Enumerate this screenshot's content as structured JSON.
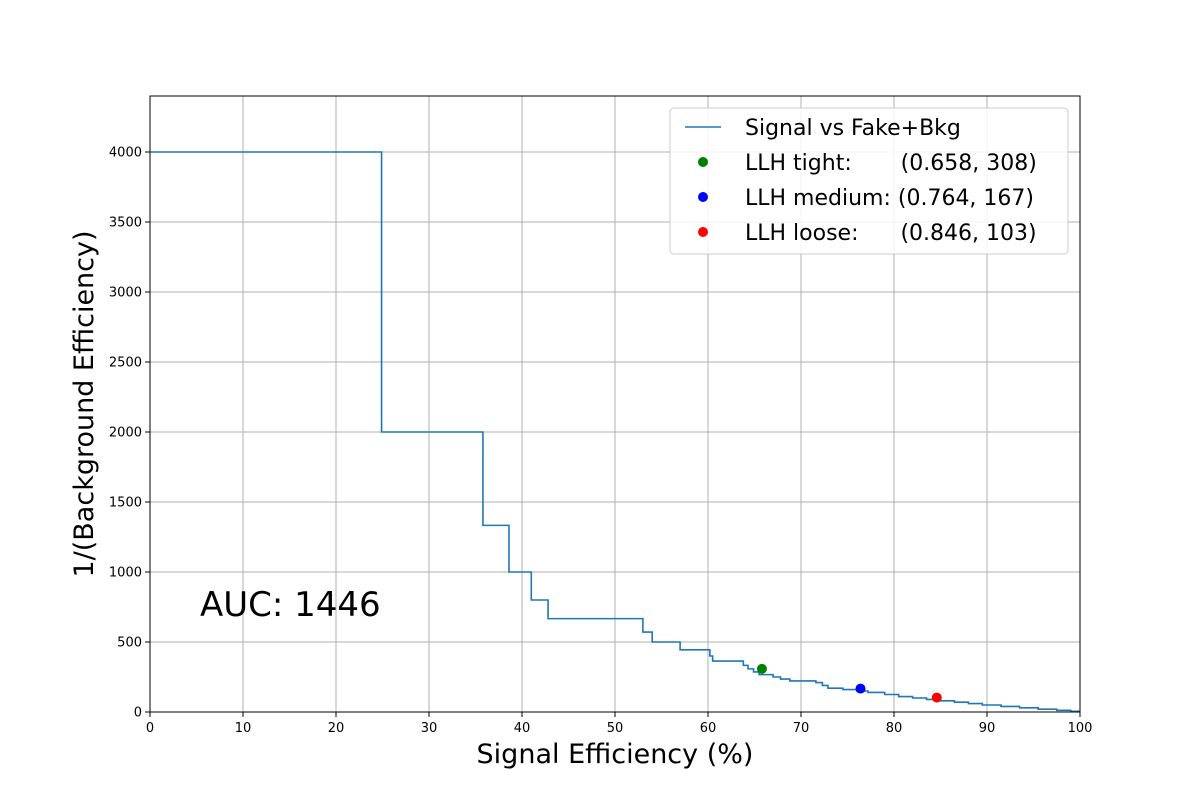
{
  "chart_data": {
    "type": "line",
    "title": "",
    "xlabel": "Signal Efficiency (%)",
    "ylabel": "1/(Background Efficiency)",
    "xlim": [
      0,
      100
    ],
    "ylim": [
      0,
      4400
    ],
    "xticks": [
      0,
      10,
      20,
      30,
      40,
      50,
      60,
      70,
      80,
      90,
      100
    ],
    "yticks": [
      0,
      500,
      1000,
      1500,
      2000,
      2500,
      3000,
      3500,
      4000
    ],
    "grid": true,
    "legend_position": "top-right",
    "series": [
      {
        "name": "Signal vs Fake+Bkg",
        "color": "#1f77b4",
        "style": "step",
        "points": [
          [
            0,
            4000
          ],
          [
            24.9,
            4000
          ],
          [
            24.9,
            2000
          ],
          [
            35.8,
            2000
          ],
          [
            35.8,
            1333
          ],
          [
            38.6,
            1333
          ],
          [
            38.6,
            1000
          ],
          [
            41.0,
            1000
          ],
          [
            41.0,
            800
          ],
          [
            42.8,
            800
          ],
          [
            42.8,
            667
          ],
          [
            53.0,
            667
          ],
          [
            53.0,
            571
          ],
          [
            54.0,
            571
          ],
          [
            54.0,
            500
          ],
          [
            57.0,
            500
          ],
          [
            57.0,
            444
          ],
          [
            60.2,
            444
          ],
          [
            60.2,
            400
          ],
          [
            60.5,
            400
          ],
          [
            60.5,
            364
          ],
          [
            63.8,
            364
          ],
          [
            63.8,
            333
          ],
          [
            64.3,
            333
          ],
          [
            64.3,
            308
          ],
          [
            64.9,
            308
          ],
          [
            64.9,
            286
          ],
          [
            65.5,
            286
          ],
          [
            65.5,
            267
          ],
          [
            67.0,
            267
          ],
          [
            67.0,
            250
          ],
          [
            67.8,
            250
          ],
          [
            67.8,
            235
          ],
          [
            68.8,
            235
          ],
          [
            68.8,
            222
          ],
          [
            71.6,
            222
          ],
          [
            71.6,
            210
          ],
          [
            72.3,
            210
          ],
          [
            72.3,
            190
          ],
          [
            72.9,
            190
          ],
          [
            72.9,
            170
          ],
          [
            74.5,
            170
          ],
          [
            74.5,
            160
          ],
          [
            76.0,
            160
          ],
          [
            76.0,
            150
          ],
          [
            77.2,
            150
          ],
          [
            77.2,
            140
          ],
          [
            79.0,
            140
          ],
          [
            79.0,
            125
          ],
          [
            80.5,
            125
          ],
          [
            80.5,
            110
          ],
          [
            82.0,
            110
          ],
          [
            82.0,
            100
          ],
          [
            83.5,
            100
          ],
          [
            83.5,
            90
          ],
          [
            85.0,
            90
          ],
          [
            85.0,
            80
          ],
          [
            86.5,
            80
          ],
          [
            86.5,
            70
          ],
          [
            88.0,
            70
          ],
          [
            88.0,
            60
          ],
          [
            89.5,
            60
          ],
          [
            89.5,
            50
          ],
          [
            91.5,
            50
          ],
          [
            91.5,
            40
          ],
          [
            93.5,
            40
          ],
          [
            93.5,
            30
          ],
          [
            95.5,
            30
          ],
          [
            95.5,
            20
          ],
          [
            97.5,
            20
          ],
          [
            97.5,
            12
          ],
          [
            99.0,
            12
          ],
          [
            99.0,
            5
          ],
          [
            100,
            5
          ]
        ]
      }
    ],
    "markers": [
      {
        "label": "LLH tight:       (0.658, 308)",
        "x": 65.8,
        "y": 308,
        "color": "#008000"
      },
      {
        "label": "LLH medium: (0.764, 167)",
        "x": 76.4,
        "y": 167,
        "color": "#0000ff"
      },
      {
        "label": "LLH loose:      (0.846, 103)",
        "x": 84.6,
        "y": 103,
        "color": "#ff0000"
      }
    ],
    "annotations": [
      {
        "text": "AUC: 1446"
      }
    ]
  }
}
